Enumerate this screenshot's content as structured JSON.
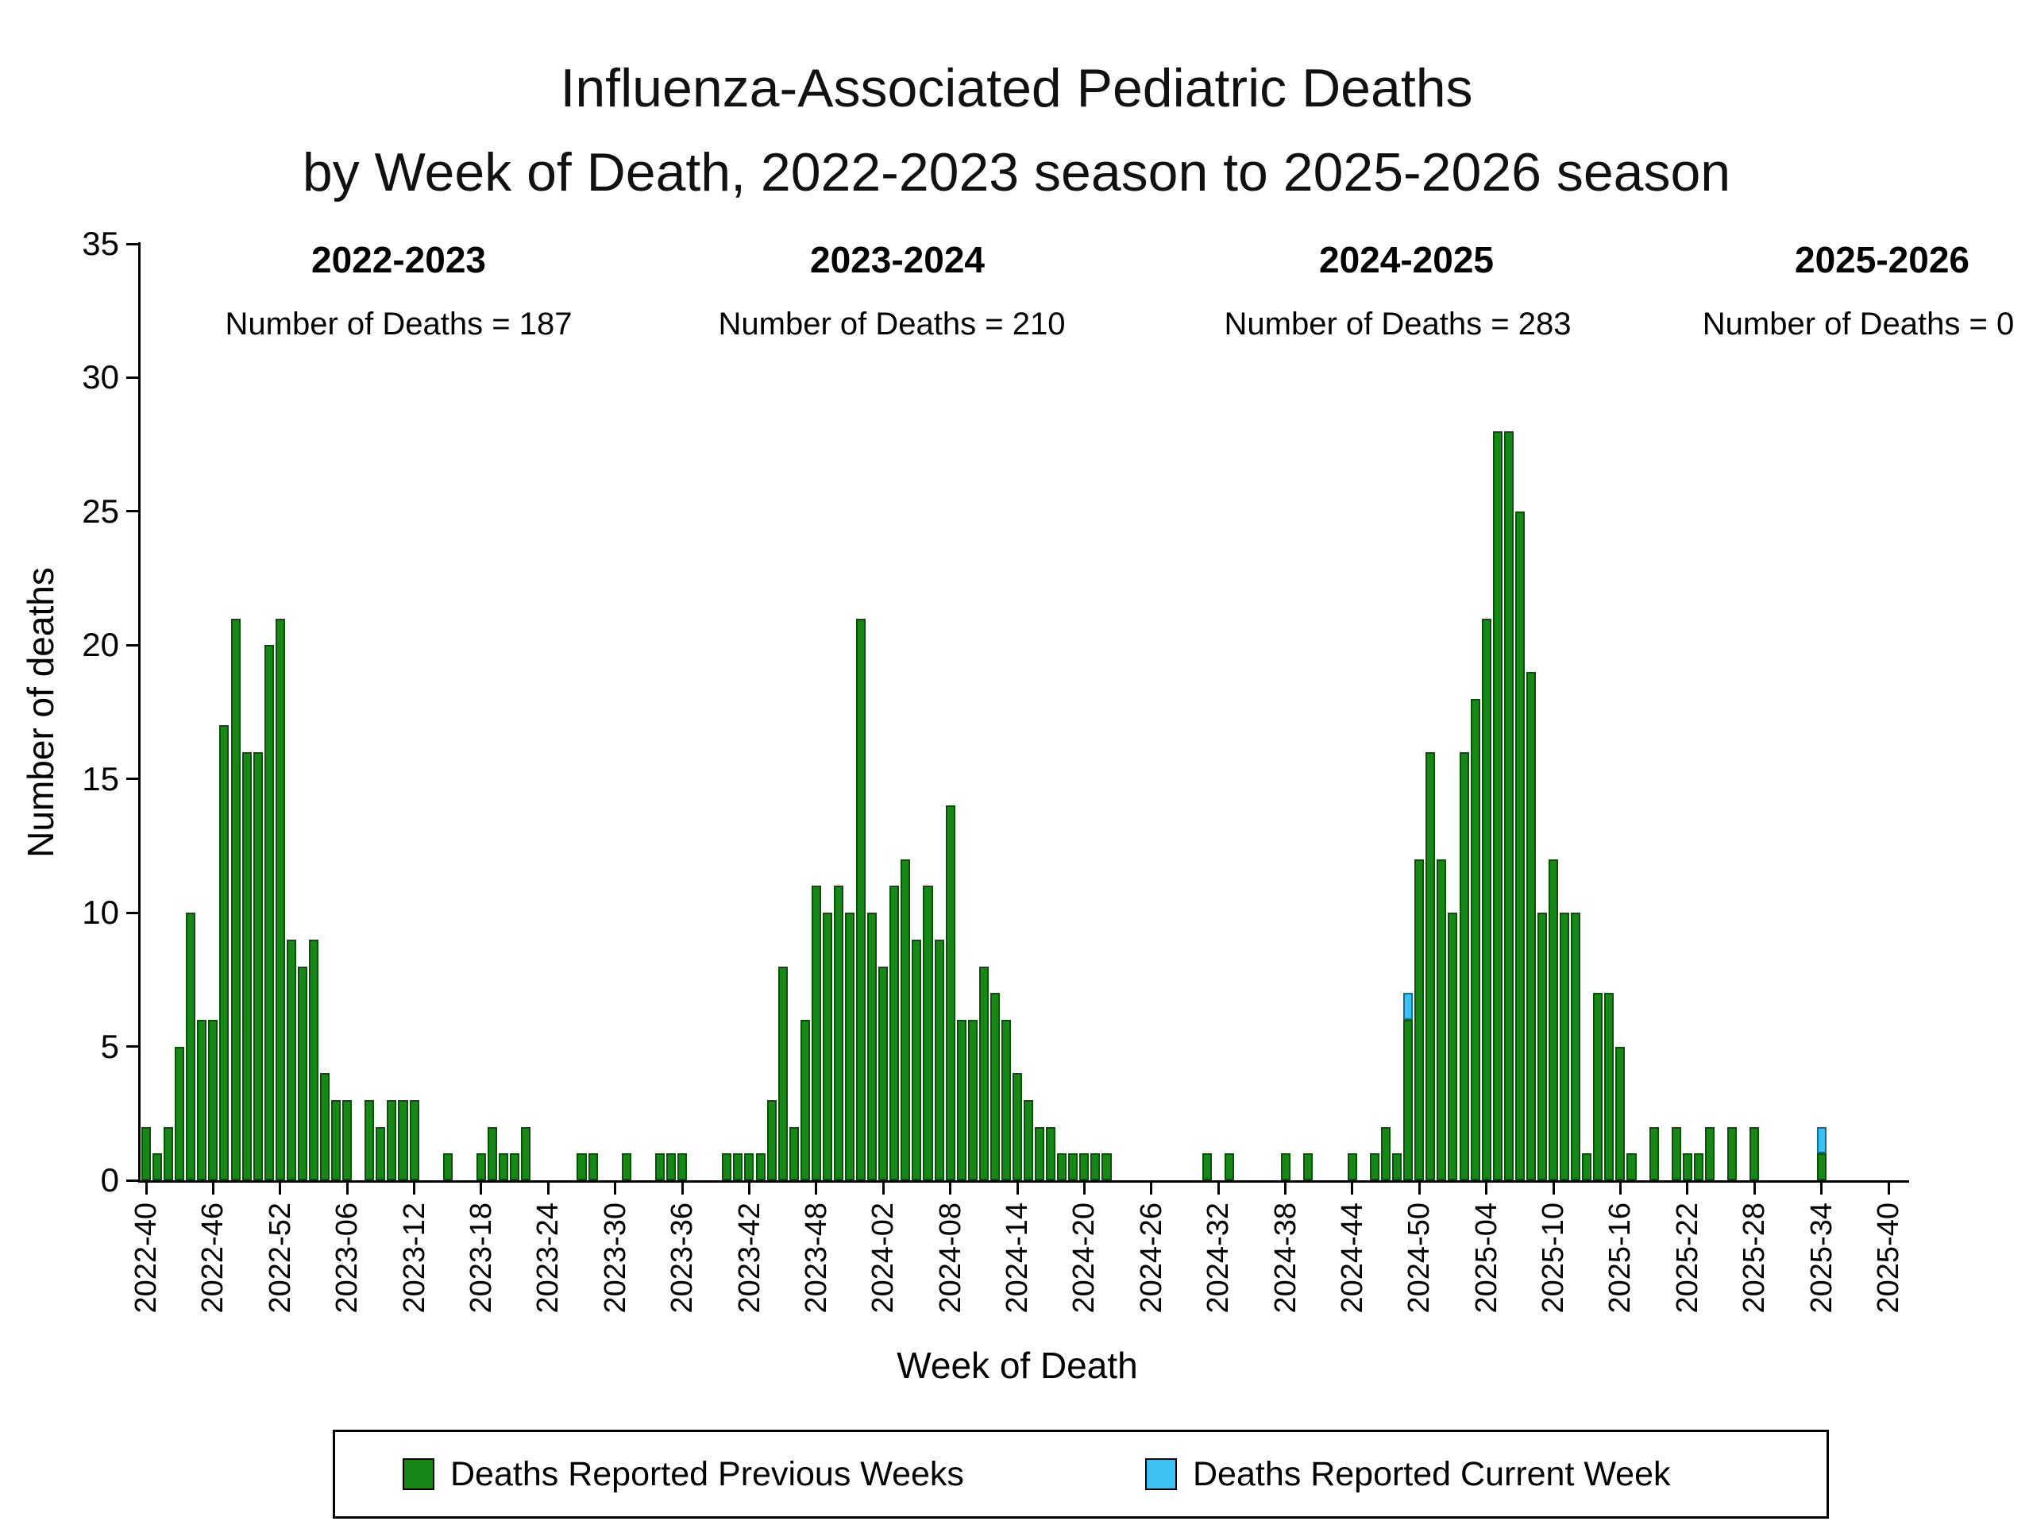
{
  "chart_data": {
    "type": "bar",
    "stacked": true,
    "title_line1": "Influenza-Associated Pediatric Deaths",
    "title_line2": "by Week of Death, 2022-2023 season to 2025-2026 season",
    "xlabel": "Week of Death",
    "ylabel": "Number of deaths",
    "ylim": [
      0,
      35
    ],
    "yticks": [
      0,
      5,
      10,
      15,
      20,
      25,
      30,
      35
    ],
    "grid": false,
    "legend_position": "bottom",
    "start_week": "2022-40",
    "x_tick_every": 6,
    "x_tick_labels": [
      "2022-40",
      "2022-46",
      "2022-52",
      "2023-06",
      "2023-12",
      "2023-18",
      "2023-24",
      "2023-30",
      "2023-36",
      "2023-42",
      "2023-48",
      "2024-02",
      "2024-08",
      "2024-14",
      "2024-20",
      "2024-26",
      "2024-32",
      "2024-38",
      "2024-44",
      "2024-50",
      "2025-04",
      "2025-10",
      "2025-16",
      "2025-22",
      "2025-28",
      "2025-34",
      "2025-40"
    ],
    "seasons": [
      {
        "name": "2022-2023",
        "count_text": "Number of Deaths = 187",
        "count": 187
      },
      {
        "name": "2023-2024",
        "count_text": "Number of Deaths = 210",
        "count": 210
      },
      {
        "name": "2024-2025",
        "count_text": "Number of Deaths = 283",
        "count": 283
      },
      {
        "name": "2025-2026",
        "count_text": "Number of Deaths = 0",
        "count": 0
      }
    ],
    "series": [
      {
        "name": "Deaths Reported Previous Weeks",
        "color": "#178717",
        "values": [
          2,
          1,
          2,
          5,
          10,
          6,
          6,
          17,
          21,
          16,
          16,
          20,
          21,
          9,
          8,
          9,
          4,
          3,
          3,
          0,
          3,
          2,
          3,
          3,
          3,
          0,
          0,
          1,
          0,
          0,
          1,
          2,
          1,
          1,
          2,
          0,
          0,
          0,
          0,
          1,
          1,
          0,
          0,
          1,
          0,
          0,
          1,
          1,
          1,
          0,
          0,
          0,
          1,
          1,
          1,
          1,
          3,
          8,
          2,
          6,
          11,
          10,
          11,
          10,
          21,
          10,
          8,
          11,
          12,
          9,
          11,
          9,
          14,
          6,
          6,
          8,
          7,
          6,
          4,
          3,
          2,
          2,
          1,
          1,
          1,
          1,
          1,
          0,
          0,
          0,
          0,
          0,
          0,
          0,
          0,
          1,
          0,
          1,
          0,
          0,
          0,
          0,
          1,
          0,
          1,
          0,
          0,
          0,
          1,
          0,
          1,
          2,
          1,
          6,
          12,
          16,
          12,
          10,
          16,
          18,
          21,
          28,
          28,
          25,
          19,
          10,
          12,
          10,
          10,
          1,
          7,
          7,
          5,
          1,
          0,
          2,
          0,
          2,
          1,
          1,
          2,
          0,
          2,
          0,
          2,
          0,
          0,
          0,
          0,
          0,
          1,
          0,
          0,
          0,
          0,
          0,
          0
        ]
      },
      {
        "name": "Deaths Reported Current Week",
        "color": "#3bc2f2",
        "values": [
          0,
          0,
          0,
          0,
          0,
          0,
          0,
          0,
          0,
          0,
          0,
          0,
          0,
          0,
          0,
          0,
          0,
          0,
          0,
          0,
          0,
          0,
          0,
          0,
          0,
          0,
          0,
          0,
          0,
          0,
          0,
          0,
          0,
          0,
          0,
          0,
          0,
          0,
          0,
          0,
          0,
          0,
          0,
          0,
          0,
          0,
          0,
          0,
          0,
          0,
          0,
          0,
          0,
          0,
          0,
          0,
          0,
          0,
          0,
          0,
          0,
          0,
          0,
          0,
          0,
          0,
          0,
          0,
          0,
          0,
          0,
          0,
          0,
          0,
          0,
          0,
          0,
          0,
          0,
          0,
          0,
          0,
          0,
          0,
          0,
          0,
          0,
          0,
          0,
          0,
          0,
          0,
          0,
          0,
          0,
          0,
          0,
          0,
          0,
          0,
          0,
          0,
          0,
          0,
          0,
          0,
          0,
          0,
          0,
          0,
          0,
          0,
          0,
          1,
          0,
          0,
          0,
          0,
          0,
          0,
          0,
          0,
          0,
          0,
          0,
          0,
          0,
          0,
          0,
          0,
          0,
          0,
          0,
          0,
          0,
          0,
          0,
          0,
          0,
          0,
          0,
          0,
          0,
          0,
          0,
          0,
          0,
          0,
          0,
          0,
          1,
          0,
          0,
          0,
          0,
          0,
          0
        ]
      }
    ]
  }
}
